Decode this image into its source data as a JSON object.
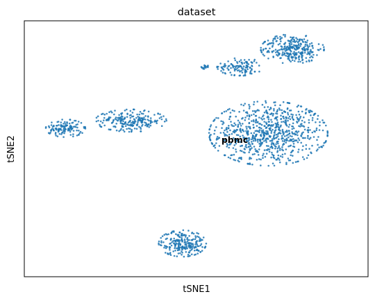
{
  "chart_data": {
    "type": "scatter",
    "title": "dataset",
    "xlabel": "tSNE1",
    "ylabel": "tSNE2",
    "point_color": "#1f77b4",
    "legend": "on data",
    "ticks": "none",
    "grid": false,
    "xlim": [
      0,
      100
    ],
    "ylim": [
      0,
      100
    ],
    "annotations": [
      {
        "text": "pbmc",
        "x": 61,
        "y": 56
      }
    ],
    "series": [
      {
        "name": "pbmc",
        "clusters": [
          {
            "center": [
              71,
              56
            ],
            "spread": [
              15,
              11
            ],
            "n": 800
          },
          {
            "center": [
              78,
              89
            ],
            "spread": [
              8,
              5
            ],
            "n": 300
          },
          {
            "center": [
              63,
              82
            ],
            "spread": [
              6,
              3
            ],
            "n": 120
          },
          {
            "center": [
              52.5,
              82
            ],
            "spread": [
              1,
              0.7
            ],
            "n": 16
          },
          {
            "center": [
              31,
              61
            ],
            "spread": [
              9,
              3.8
            ],
            "n": 230
          },
          {
            "center": [
              12,
              58
            ],
            "spread": [
              5,
              3
            ],
            "n": 130
          },
          {
            "center": [
              46,
              13
            ],
            "spread": [
              6,
              4.5
            ],
            "n": 240
          }
        ]
      }
    ]
  }
}
